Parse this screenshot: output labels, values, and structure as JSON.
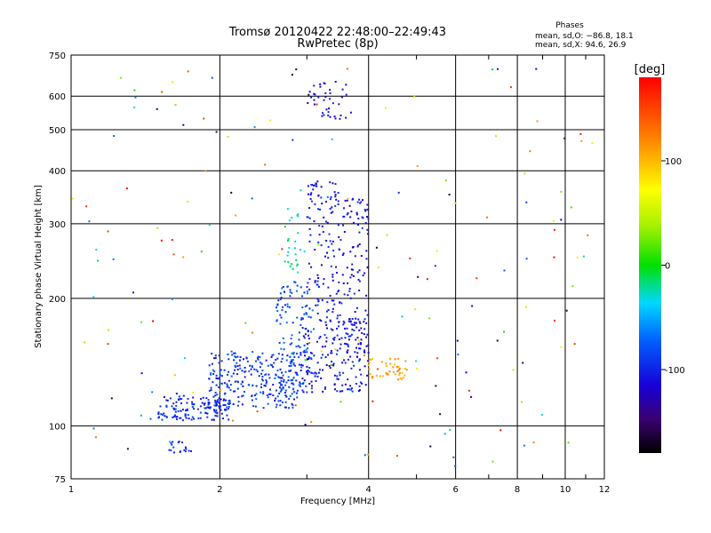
{
  "chart_data": {
    "type": "scatter",
    "title": "Tromsø 20120422 22:48:00–22:49:43",
    "subtitle": "RwPretec (8p)",
    "xlabel": "Frequency [MHz]",
    "ylabel": "Stationary phase Virtual Height [km]",
    "x_scale": "log",
    "y_scale": "log",
    "xlim": [
      1,
      12
    ],
    "ylim": [
      75,
      750
    ],
    "x_ticks": [
      1,
      2,
      4,
      6,
      8,
      10,
      12
    ],
    "y_ticks": [
      75,
      100,
      200,
      300,
      400,
      500,
      600,
      750
    ],
    "grid": true,
    "stats": {
      "heading": "Phases",
      "line1": "mean, sd,O: −86.8, 18.1",
      "line2": "mean, sd,X: 94.6, 26.9"
    },
    "colorbar": {
      "label": "[deg]",
      "range": [
        -180,
        180
      ],
      "ticks": [
        100,
        0,
        -100
      ]
    },
    "clusters": [
      {
        "x": [
          1.5,
          2.1
        ],
        "y": [
          103,
          118
        ],
        "phase": [
          -110,
          -80
        ],
        "n": 140
      },
      {
        "x": [
          1.9,
          2.9
        ],
        "y": [
          110,
          150
        ],
        "phase": [
          -110,
          -70
        ],
        "n": 260
      },
      {
        "x": [
          2.6,
          3.1
        ],
        "y": [
          120,
          220
        ],
        "phase": [
          -100,
          -60
        ],
        "n": 120
      },
      {
        "x": [
          2.9,
          4.0
        ],
        "y": [
          120,
          180
        ],
        "phase": [
          -125,
          -85
        ],
        "n": 200
      },
      {
        "x": [
          3.0,
          3.5
        ],
        "y": [
          180,
          380
        ],
        "phase": [
          -120,
          -90
        ],
        "n": 120
      },
      {
        "x": [
          3.5,
          4.0
        ],
        "y": [
          150,
          350
        ],
        "phase": [
          -125,
          -90
        ],
        "n": 100
      },
      {
        "x": [
          3.0,
          3.7
        ],
        "y": [
          530,
          650
        ],
        "phase": [
          -120,
          -95
        ],
        "n": 40
      },
      {
        "x": [
          4.0,
          4.8
        ],
        "y": [
          128,
          145
        ],
        "phase": [
          95,
          125
        ],
        "n": 45
      },
      {
        "x": [
          1.55,
          1.75
        ],
        "y": [
          86,
          92
        ],
        "phase": [
          -105,
          -85
        ],
        "n": 18
      },
      {
        "x": [
          2.7,
          3.0
        ],
        "y": [
          230,
          330
        ],
        "phase": [
          -40,
          -5
        ],
        "n": 25
      },
      {
        "x": [
          1.0,
          11.5
        ],
        "y": [
          80,
          700
        ],
        "phase": [
          -180,
          180
        ],
        "n": 180
      }
    ]
  }
}
